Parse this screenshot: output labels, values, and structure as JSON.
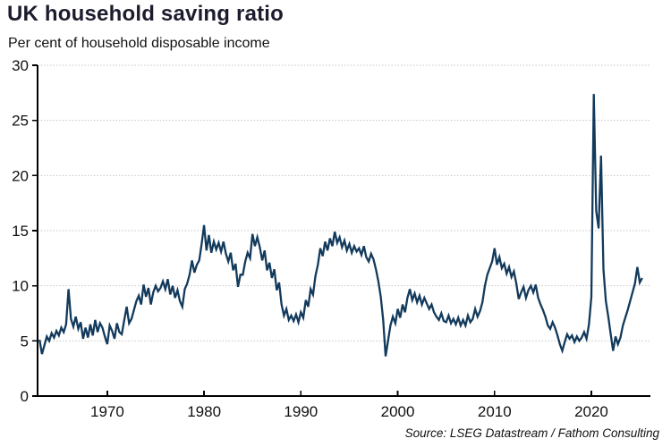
{
  "title": "UK household saving ratio",
  "subtitle": "Per cent of household disposable income",
  "source": "Source: LSEG Datastream / Fathom Consulting",
  "colors": {
    "line": "#123a5c",
    "title_text": "#1c1c2e",
    "body_text": "#111111",
    "grid": "#c6c6c6",
    "axis": "#000000",
    "background": "#ffffff"
  },
  "chart_data": {
    "type": "line",
    "title": "UK household saving ratio",
    "ylabel": "Per cent of household disposable income",
    "xlabel": "",
    "legend": "none",
    "grid": "horizontal dotted at each y tick",
    "xlim": [
      1962.8,
      2026.1
    ],
    "ylim": [
      0,
      30
    ],
    "x_ticks": [
      1970,
      1980,
      1990,
      2000,
      2010,
      2020
    ],
    "y_ticks": [
      0,
      5,
      10,
      15,
      20,
      25,
      30
    ],
    "series": [
      {
        "name": "UK household saving ratio (% of disposable income, quarterly)",
        "start_year": 1963.0,
        "period_years": 0.25,
        "values": [
          5.1,
          3.8,
          4.6,
          5.4,
          5.0,
          5.7,
          5.3,
          5.9,
          5.5,
          6.2,
          5.8,
          6.5,
          9.7,
          7.0,
          6.3,
          7.2,
          6.1,
          6.7,
          5.2,
          6.2,
          5.3,
          6.5,
          5.5,
          6.9,
          5.8,
          6.6,
          6.2,
          5.4,
          4.7,
          6.4,
          5.9,
          5.2,
          6.6,
          5.8,
          5.6,
          6.9,
          8.1,
          6.6,
          7.0,
          7.8,
          8.6,
          9.1,
          8.3,
          10.1,
          9.0,
          9.8,
          8.3,
          9.4,
          10.0,
          9.5,
          9.8,
          10.4,
          9.7,
          10.6,
          9.2,
          10.0,
          8.9,
          9.6,
          8.6,
          8.1,
          9.7,
          10.2,
          11.0,
          12.3,
          11.2,
          11.9,
          12.3,
          13.8,
          15.5,
          13.2,
          14.6,
          13.0,
          14.0,
          13.3,
          13.9,
          13.1,
          14.0,
          12.9,
          12.2,
          13.0,
          11.4,
          12.0,
          9.9,
          11.0,
          11.0,
          12.2,
          13.0,
          12.5,
          14.7,
          13.6,
          14.4,
          13.5,
          12.3,
          13.2,
          11.4,
          12.1,
          10.7,
          11.5,
          9.6,
          10.3,
          8.3,
          7.3,
          7.9,
          6.9,
          7.3,
          6.8,
          7.4,
          6.7,
          7.6,
          7.1,
          8.7,
          8.1,
          9.7,
          9.2,
          10.9,
          11.9,
          13.4,
          12.7,
          14.0,
          13.2,
          14.3,
          13.6,
          14.9,
          13.9,
          14.4,
          13.5,
          14.1,
          13.2,
          13.8,
          13.0,
          13.6,
          13.1,
          13.4,
          12.8,
          13.6,
          12.6,
          12.2,
          12.9,
          12.4,
          11.5,
          10.4,
          9.0,
          6.9,
          3.6,
          5.0,
          6.4,
          7.2,
          6.6,
          7.9,
          7.1,
          8.3,
          7.6,
          8.9,
          9.7,
          8.7,
          9.3,
          8.5,
          9.1,
          8.3,
          8.9,
          8.4,
          7.9,
          8.3,
          7.6,
          7.2,
          6.9,
          7.5,
          6.8,
          6.7,
          7.3,
          6.6,
          7.0,
          6.5,
          7.1,
          6.4,
          6.9,
          6.4,
          7.3,
          6.7,
          7.0,
          7.9,
          7.2,
          7.7,
          8.5,
          10.0,
          11.0,
          11.6,
          12.2,
          13.4,
          11.9,
          12.6,
          11.6,
          12.0,
          11.1,
          11.7,
          10.8,
          11.3,
          10.2,
          8.8,
          9.4,
          9.9,
          8.9,
          9.6,
          10.0,
          9.4,
          10.1,
          8.9,
          8.3,
          7.8,
          7.2,
          6.4,
          6.1,
          6.7,
          6.2,
          5.5,
          4.7,
          4.1,
          4.9,
          5.6,
          5.2,
          5.5,
          4.9,
          5.4,
          5.0,
          5.3,
          5.8,
          5.2,
          6.5,
          9.0,
          27.4,
          16.8,
          15.2,
          21.8,
          11.5,
          8.6,
          7.2,
          5.6,
          4.1,
          5.4,
          4.7,
          5.3,
          6.4,
          7.1,
          7.8,
          8.6,
          9.4,
          10.2,
          11.7,
          10.3,
          10.7
        ]
      }
    ]
  }
}
